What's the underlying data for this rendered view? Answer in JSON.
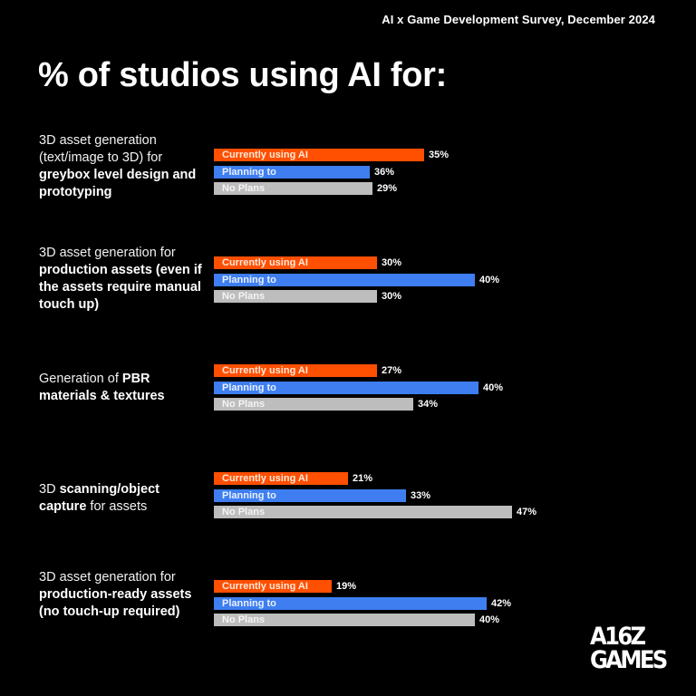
{
  "header": {
    "survey_title": "AI x Game Development Survey, December 2024",
    "main_title": "% of studios using AI for:"
  },
  "legend": {
    "current": "Currently using AI",
    "planning": "Planning to",
    "no_plans": "No Plans"
  },
  "colors": {
    "current": "#ff4f00",
    "planning": "#3e7ef0",
    "no_plans": "#bdbdbd",
    "background": "#000000"
  },
  "groups": [
    {
      "label_parts": [
        [
          "3D asset generation (text/image to 3D) for ",
          false
        ],
        [
          "greybox level design and prototyping",
          true
        ]
      ],
      "current": "35%",
      "planning": "36%",
      "no_plans": "29%"
    },
    {
      "label_parts": [
        [
          "3D asset generation for ",
          false
        ],
        [
          "production assets (even if the assets require manual touch up)",
          true
        ]
      ],
      "current": "30%",
      "planning": "40%",
      "no_plans": "30%"
    },
    {
      "label_parts": [
        [
          "Generation of ",
          false
        ],
        [
          "PBR materials & textures",
          true
        ]
      ],
      "current": "27%",
      "planning": "40%",
      "no_plans": "34%"
    },
    {
      "label_parts": [
        [
          "3D ",
          false
        ],
        [
          "scanning/object capture",
          true
        ],
        [
          " for assets",
          false
        ]
      ],
      "current": "21%",
      "planning": "33%",
      "no_plans": "47%"
    },
    {
      "label_parts": [
        [
          "3D asset generation for ",
          false
        ],
        [
          "production-ready assets (no touch-up required)",
          true
        ]
      ],
      "current": "19%",
      "planning": "42%",
      "no_plans": "40%"
    }
  ],
  "logo": {
    "line1": "A16Z",
    "line2": "GAMES"
  },
  "chart_data": {
    "type": "bar",
    "orientation": "horizontal",
    "title": "% of studios using AI for:",
    "subtitle": "AI x Game Development Survey, December 2024",
    "categories": [
      "3D asset generation (text/image to 3D) for greybox level design and prototyping",
      "3D asset generation for production assets (even if the assets require manual touch up)",
      "Generation of PBR materials & textures",
      "3D scanning/object capture for assets",
      "3D asset generation for production-ready assets (no touch-up required)"
    ],
    "series": [
      {
        "name": "Currently using AI",
        "color": "#ff4f00",
        "values": [
          35,
          30,
          27,
          21,
          19
        ]
      },
      {
        "name": "Planning to",
        "color": "#3e7ef0",
        "values": [
          36,
          40,
          40,
          33,
          42
        ]
      },
      {
        "name": "No Plans",
        "color": "#bdbdbd",
        "values": [
          29,
          30,
          34,
          47,
          40
        ]
      }
    ],
    "bar_pixel_widths": [
      [
        232,
        172,
        175
      ],
      [
        180,
        288,
        180
      ],
      [
        180,
        292,
        220
      ],
      [
        148,
        212,
        329
      ],
      [
        130,
        301,
        288
      ]
    ],
    "xlabel": "",
    "ylabel": "",
    "unit": "%",
    "grid": false,
    "legend_position": "inside bars"
  }
}
